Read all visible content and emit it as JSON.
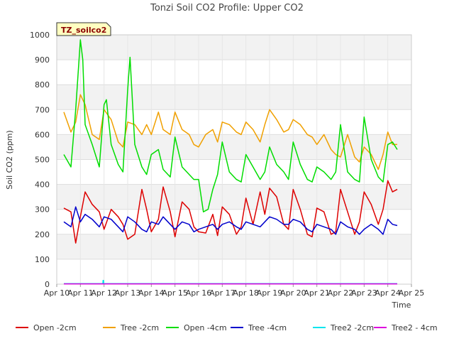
{
  "chart_data": {
    "type": "line",
    "title": "Tonzi Soil CO2 Profile: Upper CO2",
    "xlabel": "Time",
    "ylabel": "Soil CO2 (ppm)",
    "badge": "TZ_soilco2",
    "ylim": [
      0,
      1000
    ],
    "yticks": [
      0,
      100,
      200,
      300,
      400,
      500,
      600,
      700,
      800,
      900,
      1000
    ],
    "xlim": [
      10,
      25
    ],
    "xtick_values": [
      10,
      11,
      12,
      13,
      14,
      15,
      16,
      17,
      18,
      19,
      20,
      21,
      22,
      23,
      24,
      25
    ],
    "xtick_labels": [
      "Apr 10",
      "Apr 11",
      "Apr 12",
      "Apr 13",
      "Apr 14",
      "Apr 15",
      "Apr 16",
      "Apr 17",
      "Apr 18",
      "Apr 19",
      "Apr 20",
      "Apr 21",
      "Apr 22",
      "Apr 23",
      "Apr 24",
      "Apr 25"
    ],
    "grid": true,
    "legend_position": "bottom",
    "series": [
      {
        "name": "Open -2cm",
        "color": "#dd0000",
        "x": [
          10.3,
          10.6,
          10.8,
          11.0,
          11.2,
          11.5,
          11.8,
          12.0,
          12.3,
          12.6,
          12.8,
          13.0,
          13.3,
          13.6,
          13.8,
          14.0,
          14.3,
          14.5,
          14.8,
          15.0,
          15.3,
          15.6,
          15.8,
          16.0,
          16.3,
          16.6,
          16.8,
          17.0,
          17.3,
          17.6,
          17.8,
          18.0,
          18.3,
          18.6,
          18.8,
          19.0,
          19.3,
          19.6,
          19.8,
          20.0,
          20.3,
          20.6,
          20.8,
          21.0,
          21.3,
          21.6,
          21.8,
          22.0,
          22.3,
          22.6,
          22.8,
          23.0,
          23.3,
          23.6,
          23.8,
          24.0,
          24.2,
          24.4
        ],
        "y": [
          305,
          290,
          165,
          270,
          370,
          320,
          290,
          220,
          300,
          270,
          240,
          180,
          200,
          380,
          300,
          210,
          260,
          390,
          290,
          190,
          330,
          300,
          230,
          210,
          205,
          280,
          195,
          310,
          280,
          200,
          230,
          345,
          240,
          370,
          280,
          385,
          350,
          240,
          220,
          380,
          300,
          200,
          190,
          305,
          290,
          200,
          210,
          380,
          290,
          200,
          250,
          370,
          320,
          240,
          300,
          415,
          370,
          380
        ]
      },
      {
        "name": "Tree -2cm",
        "color": "#f0a000",
        "x": [
          10.3,
          10.6,
          10.8,
          11.0,
          11.2,
          11.5,
          11.8,
          12.0,
          12.3,
          12.6,
          12.8,
          13.0,
          13.3,
          13.6,
          13.8,
          14.0,
          14.3,
          14.5,
          14.8,
          15.0,
          15.3,
          15.6,
          15.8,
          16.0,
          16.3,
          16.6,
          16.8,
          17.0,
          17.3,
          17.6,
          17.8,
          18.0,
          18.3,
          18.6,
          18.8,
          19.0,
          19.3,
          19.6,
          19.8,
          20.0,
          20.3,
          20.6,
          20.8,
          21.0,
          21.3,
          21.6,
          21.8,
          22.0,
          22.3,
          22.6,
          22.8,
          23.0,
          23.3,
          23.6,
          23.8,
          24.0,
          24.2,
          24.4
        ],
        "y": [
          690,
          610,
          650,
          760,
          720,
          600,
          580,
          700,
          660,
          570,
          550,
          650,
          640,
          600,
          640,
          600,
          690,
          620,
          600,
          690,
          620,
          600,
          560,
          550,
          600,
          620,
          570,
          650,
          640,
          610,
          600,
          650,
          620,
          570,
          640,
          700,
          660,
          610,
          620,
          660,
          640,
          600,
          590,
          560,
          600,
          540,
          520,
          510,
          600,
          510,
          490,
          550,
          520,
          460,
          520,
          610,
          560,
          560
        ]
      },
      {
        "name": "Open -4cm",
        "color": "#00dd00",
        "x": [
          10.3,
          10.6,
          10.8,
          11.0,
          11.1,
          11.2,
          11.5,
          11.8,
          12.0,
          12.1,
          12.3,
          12.6,
          12.8,
          13.0,
          13.1,
          13.3,
          13.6,
          13.8,
          14.0,
          14.3,
          14.5,
          14.8,
          15.0,
          15.3,
          15.6,
          15.8,
          16.0,
          16.2,
          16.4,
          16.6,
          16.8,
          17.0,
          17.3,
          17.6,
          17.8,
          18.0,
          18.3,
          18.6,
          18.8,
          19.0,
          19.3,
          19.6,
          19.8,
          20.0,
          20.3,
          20.6,
          20.8,
          21.0,
          21.3,
          21.6,
          21.8,
          22.0,
          22.3,
          22.6,
          22.8,
          23.0,
          23.3,
          23.6,
          23.8,
          24.0,
          24.2,
          24.4
        ],
        "y": [
          520,
          470,
          700,
          980,
          900,
          640,
          560,
          470,
          720,
          740,
          560,
          480,
          450,
          780,
          910,
          560,
          470,
          440,
          520,
          540,
          460,
          430,
          590,
          470,
          440,
          420,
          420,
          290,
          300,
          380,
          440,
          570,
          450,
          420,
          410,
          520,
          470,
          420,
          450,
          550,
          480,
          450,
          420,
          570,
          480,
          420,
          410,
          470,
          450,
          420,
          450,
          640,
          450,
          420,
          410,
          670,
          500,
          430,
          410,
          560,
          570,
          540
        ]
      },
      {
        "name": "Tree -4cm",
        "color": "#0000cc",
        "x": [
          10.3,
          10.6,
          10.8,
          11.0,
          11.2,
          11.5,
          11.8,
          12.0,
          12.3,
          12.6,
          12.8,
          13.0,
          13.3,
          13.6,
          13.8,
          14.0,
          14.3,
          14.5,
          14.8,
          15.0,
          15.3,
          15.6,
          15.8,
          16.0,
          16.3,
          16.6,
          16.8,
          17.0,
          17.3,
          17.6,
          17.8,
          18.0,
          18.3,
          18.6,
          18.8,
          19.0,
          19.3,
          19.6,
          19.8,
          20.0,
          20.3,
          20.6,
          20.8,
          21.0,
          21.3,
          21.6,
          21.8,
          22.0,
          22.3,
          22.6,
          22.8,
          23.0,
          23.3,
          23.6,
          23.8,
          24.0,
          24.2,
          24.4
        ],
        "y": [
          250,
          230,
          310,
          250,
          280,
          260,
          230,
          270,
          260,
          230,
          210,
          270,
          250,
          220,
          210,
          250,
          240,
          270,
          240,
          220,
          250,
          240,
          210,
          220,
          230,
          240,
          220,
          240,
          250,
          230,
          220,
          250,
          240,
          230,
          250,
          270,
          260,
          240,
          240,
          260,
          250,
          220,
          210,
          240,
          230,
          220,
          200,
          250,
          230,
          220,
          200,
          220,
          240,
          220,
          200,
          260,
          240,
          235
        ]
      },
      {
        "name": "Tree2 -2cm",
        "color": "#00e5ee",
        "x": [
          10.3,
          11.95,
          11.96,
          11.97,
          11.98,
          11.99,
          12.0,
          24.4
        ],
        "y": [
          2,
          2,
          15,
          2,
          15,
          2,
          2,
          2
        ]
      },
      {
        "name": "Tree2 - 4cm",
        "color": "#dd00dd",
        "x": [
          10.3,
          24.4
        ],
        "y": [
          1,
          1
        ]
      }
    ]
  }
}
